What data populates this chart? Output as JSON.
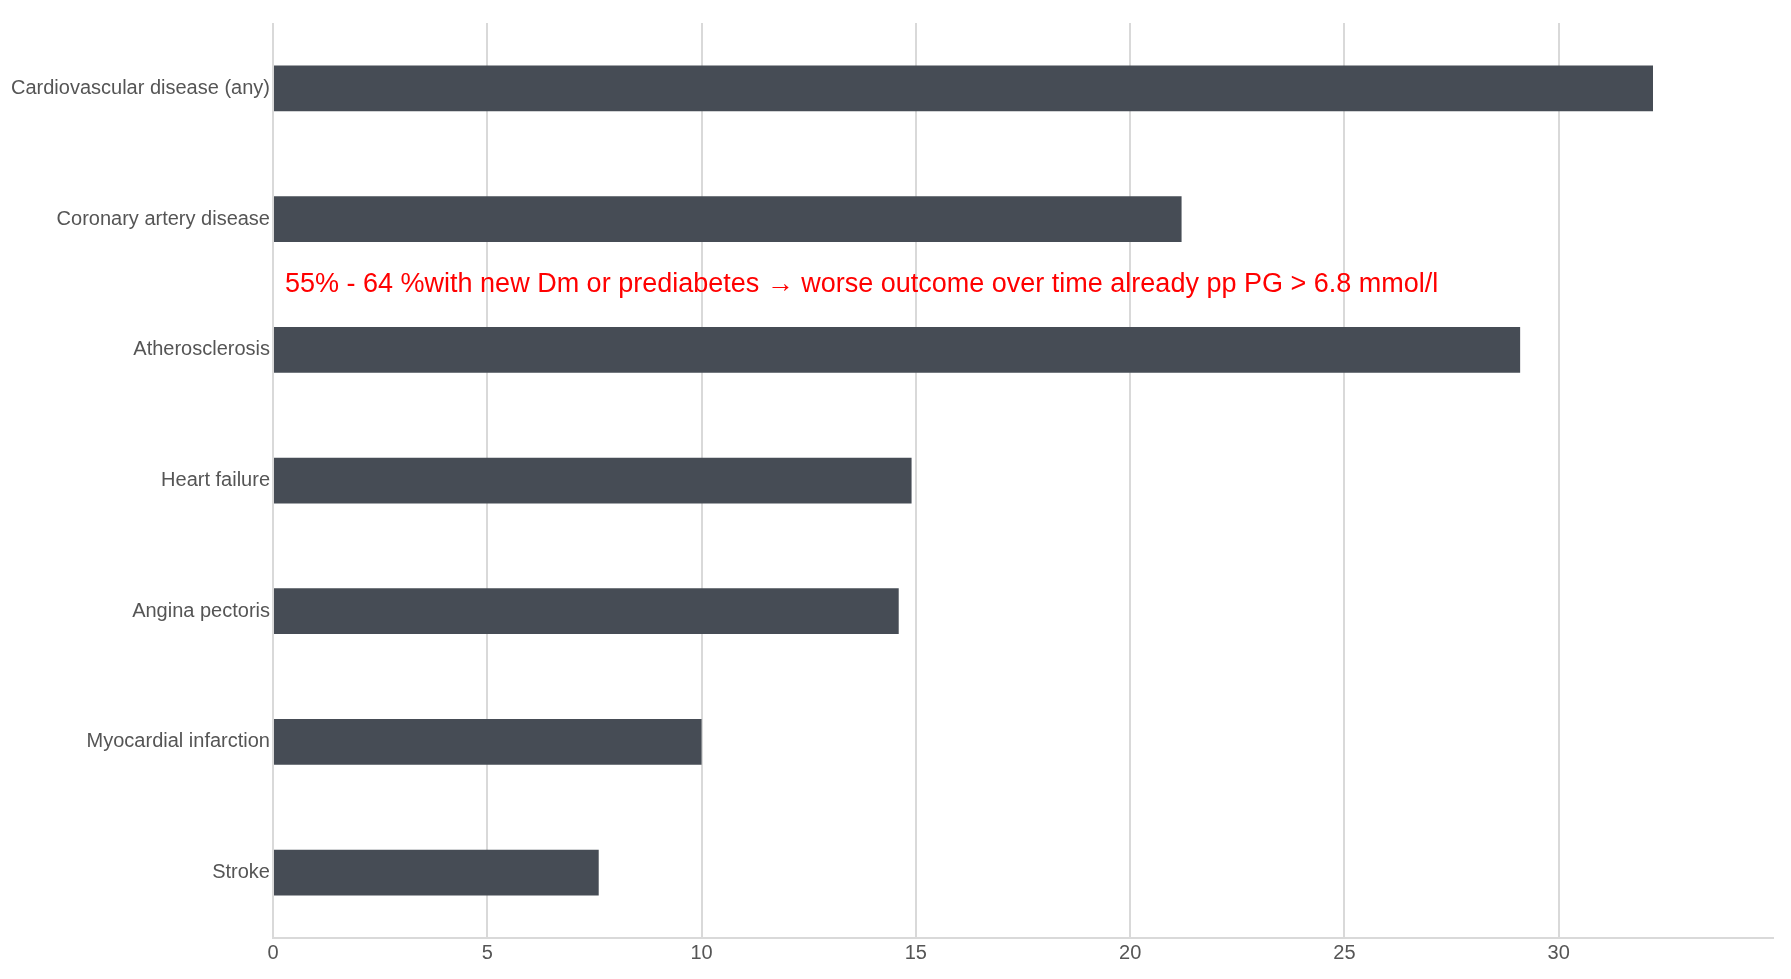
{
  "chart_data": {
    "type": "bar",
    "orientation": "horizontal",
    "categories": [
      "Cardiovascular disease (any)",
      "Coronary artery disease",
      "Atherosclerosis",
      "Heart failure",
      "Angina pectoris",
      "Myocardial infarction",
      "Stroke"
    ],
    "values": [
      32.2,
      21.2,
      29.1,
      14.9,
      14.6,
      10,
      7.6
    ],
    "color": "#464c55",
    "xlim": [
      0,
      35
    ],
    "xticks": [
      0,
      5,
      10,
      15,
      20,
      25,
      30
    ],
    "grid": "x",
    "legend": false,
    "annotations": [
      "55% - 64 %with new Dm or prediabetes → worse outcome over time already pp PG > 6.8 mmol/l"
    ]
  }
}
